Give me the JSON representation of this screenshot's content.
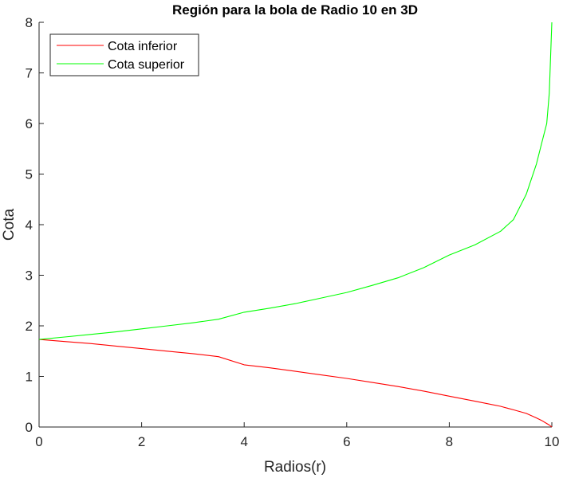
{
  "chart_data": {
    "type": "line",
    "title": "Región para la bola de Radio 10 en 3D",
    "xlabel": "Radios(r)",
    "ylabel": "Cota",
    "xlim": [
      0,
      10
    ],
    "ylim": [
      0,
      8
    ],
    "xticks": [
      0,
      2,
      4,
      6,
      8,
      10
    ],
    "yticks": [
      0,
      1,
      2,
      3,
      4,
      5,
      6,
      7,
      8
    ],
    "grid": false,
    "box": false,
    "legend_position": "upper left",
    "x": [
      0,
      0.5,
      1,
      1.5,
      2,
      2.5,
      3,
      3.5,
      4,
      4.5,
      5,
      5.5,
      6,
      6.5,
      7,
      7.5,
      8,
      8.5,
      9,
      9.25,
      9.5,
      9.7,
      9.8,
      9.9,
      9.95,
      10
    ],
    "series": [
      {
        "name": "Cota inferior",
        "color": "#ff0000",
        "values": [
          1.73,
          1.69,
          1.65,
          1.6,
          1.55,
          1.5,
          1.45,
          1.39,
          1.23,
          1.17,
          1.1,
          1.03,
          0.96,
          0.88,
          0.8,
          0.71,
          0.61,
          0.51,
          0.41,
          0.34,
          0.27,
          0.18,
          0.13,
          0.07,
          0.04,
          0.0
        ]
      },
      {
        "name": "Cota superior",
        "color": "#00ff00",
        "values": [
          1.73,
          1.78,
          1.83,
          1.88,
          1.94,
          2.0,
          2.06,
          2.13,
          2.27,
          2.35,
          2.44,
          2.55,
          2.66,
          2.8,
          2.95,
          3.15,
          3.4,
          3.6,
          3.87,
          4.1,
          4.6,
          5.2,
          5.6,
          6.0,
          6.6,
          8.0
        ]
      }
    ]
  },
  "legend": {
    "items": [
      {
        "label": "Cota inferior",
        "color": "#ff0000"
      },
      {
        "label": "Cota superior",
        "color": "#00ff00"
      }
    ]
  }
}
